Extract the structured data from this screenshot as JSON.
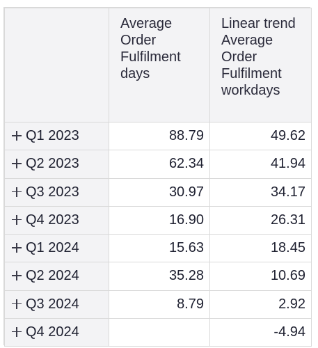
{
  "table": {
    "columns": [
      "Average Order Fulfilment days",
      "Linear trend Average Order Fulfilment workdays"
    ],
    "rows": [
      {
        "label": "Q1 2023",
        "avg_days": "88.79",
        "trend_workdays": "49.62"
      },
      {
        "label": "Q2 2023",
        "avg_days": "62.34",
        "trend_workdays": "41.94"
      },
      {
        "label": "Q3 2023",
        "avg_days": "30.97",
        "trend_workdays": "34.17"
      },
      {
        "label": "Q4 2023",
        "avg_days": "16.90",
        "trend_workdays": "26.31"
      },
      {
        "label": "Q1 2024",
        "avg_days": "15.63",
        "trend_workdays": "18.45"
      },
      {
        "label": "Q2 2024",
        "avg_days": "35.28",
        "trend_workdays": "10.69"
      },
      {
        "label": "Q3 2024",
        "avg_days": "8.79",
        "trend_workdays": "2.92"
      },
      {
        "label": "Q4 2024",
        "avg_days": "",
        "trend_workdays": "-4.94"
      }
    ]
  },
  "icons": {
    "row_expand": "plus-icon"
  },
  "colors": {
    "header_background": "#f3f3f5",
    "cell_background": "#ffffff",
    "grid_line": "#d9d9d9",
    "text": "#1e2030"
  }
}
